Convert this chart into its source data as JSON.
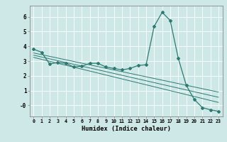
{
  "xlabel": "Humidex (Indice chaleur)",
  "ylabel": "",
  "background_color": "#cde8e6",
  "grid_color": "#ffffff",
  "line_color": "#2d7a72",
  "xlim": [
    -0.5,
    23.5
  ],
  "ylim": [
    -0.75,
    6.75
  ],
  "x_ticks": [
    0,
    1,
    2,
    3,
    4,
    5,
    6,
    7,
    8,
    9,
    10,
    11,
    12,
    13,
    14,
    15,
    16,
    17,
    18,
    19,
    20,
    21,
    22,
    23
  ],
  "y_ticks": [
    0,
    1,
    2,
    3,
    4,
    5,
    6
  ],
  "y_tick_labels": [
    "-0",
    "1",
    "2",
    "3",
    "4",
    "5",
    "6"
  ],
  "main_series_x": [
    0,
    1,
    2,
    3,
    4,
    5,
    6,
    7,
    8,
    9,
    10,
    11,
    12,
    13,
    14,
    15,
    16,
    17,
    18,
    19,
    20,
    21,
    22,
    23
  ],
  "main_series_y": [
    3.8,
    3.6,
    2.8,
    2.9,
    2.85,
    2.6,
    2.65,
    2.85,
    2.85,
    2.6,
    2.5,
    2.4,
    2.5,
    2.7,
    2.75,
    5.35,
    6.3,
    5.75,
    3.2,
    1.35,
    0.4,
    -0.15,
    -0.3,
    -0.4
  ],
  "trend1_x": [
    0,
    23
  ],
  "trend1_y": [
    3.55,
    0.9
  ],
  "trend2_x": [
    0,
    23
  ],
  "trend2_y": [
    3.4,
    0.55
  ],
  "trend3_x": [
    0,
    23
  ],
  "trend3_y": [
    3.25,
    0.2
  ]
}
